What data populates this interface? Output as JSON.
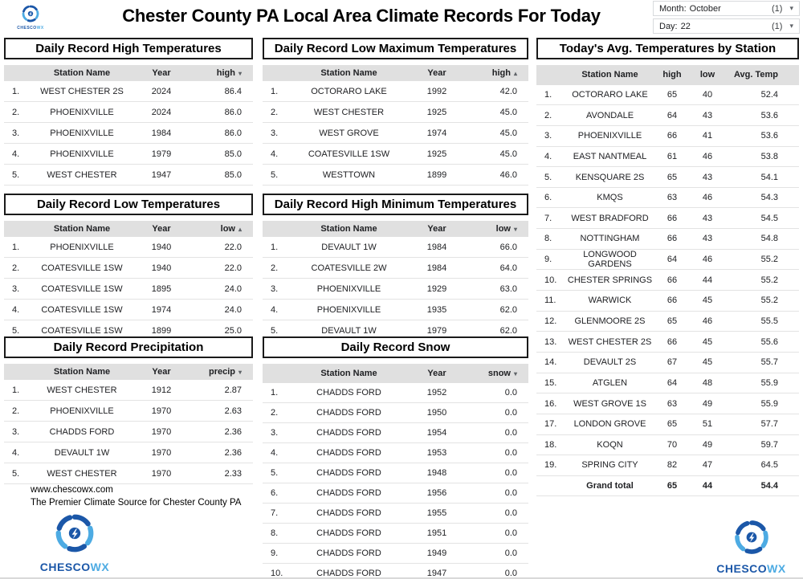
{
  "header": {
    "title": "Chester County PA Local Area Climate Records For Today"
  },
  "brand": {
    "dark": "CHESCO",
    "light": "WX"
  },
  "filters": {
    "month": {
      "label": "Month:",
      "value": "October",
      "count": "(1)"
    },
    "day": {
      "label": "Day:",
      "value": "22",
      "count": "(1)"
    }
  },
  "icons": {
    "dropdown_caret": "▾",
    "sort_asc": "▴",
    "sort_desc": "▾",
    "logo": "hurricane-swirl"
  },
  "colors": {
    "brand_dark": "#1b57a8",
    "brand_light": "#4dabe3",
    "header_bg": "#e0e0e0",
    "row_border": "#e3e3e3",
    "title_border": "#1a1a1a"
  },
  "tables": {
    "record_high": {
      "title": "Daily Record High Temperatures",
      "columns": [
        "Station Name",
        "Year"
      ],
      "sort": {
        "label": "high",
        "dir": "desc"
      },
      "rows": [
        [
          "1.",
          "WEST CHESTER 2S",
          "2024",
          "86.4"
        ],
        [
          "2.",
          "PHOENIXVILLE",
          "2024",
          "86.0"
        ],
        [
          "3.",
          "PHOENIXVILLE",
          "1984",
          "86.0"
        ],
        [
          "4.",
          "PHOENIXVILLE",
          "1979",
          "85.0"
        ],
        [
          "5.",
          "WEST CHESTER",
          "1947",
          "85.0"
        ]
      ]
    },
    "record_low": {
      "title": "Daily Record Low Temperatures",
      "columns": [
        "Station Name",
        "Year"
      ],
      "sort": {
        "label": "low",
        "dir": "asc"
      },
      "rows": [
        [
          "1.",
          "PHOENIXVILLE",
          "1940",
          "22.0"
        ],
        [
          "2.",
          "COATESVILLE 1SW",
          "1940",
          "22.0"
        ],
        [
          "3.",
          "COATESVILLE 1SW",
          "1895",
          "24.0"
        ],
        [
          "4.",
          "COATESVILLE 1SW",
          "1974",
          "24.0"
        ],
        [
          "5.",
          "COATESVILLE 1SW",
          "1899",
          "25.0"
        ]
      ]
    },
    "record_precip": {
      "title": "Daily Record Precipitation",
      "columns": [
        "Station Name",
        "Year"
      ],
      "sort": {
        "label": "precip",
        "dir": "desc"
      },
      "rows": [
        [
          "1.",
          "WEST CHESTER",
          "1912",
          "2.87"
        ],
        [
          "2.",
          "PHOENIXVILLE",
          "1970",
          "2.63"
        ],
        [
          "3.",
          "CHADDS FORD",
          "1970",
          "2.36"
        ],
        [
          "4.",
          "DEVAULT 1W",
          "1970",
          "2.36"
        ],
        [
          "5.",
          "WEST CHESTER",
          "1970",
          "2.33"
        ]
      ]
    },
    "record_low_max": {
      "title": "Daily Record Low Maximum Temperatures",
      "columns": [
        "Station Name",
        "Year"
      ],
      "sort": {
        "label": "high",
        "dir": "asc"
      },
      "rows": [
        [
          "1.",
          "OCTORARO LAKE",
          "1992",
          "42.0"
        ],
        [
          "2.",
          "WEST CHESTER",
          "1925",
          "45.0"
        ],
        [
          "3.",
          "WEST GROVE",
          "1974",
          "45.0"
        ],
        [
          "4.",
          "COATESVILLE 1SW",
          "1925",
          "45.0"
        ],
        [
          "5.",
          "WESTTOWN",
          "1899",
          "46.0"
        ]
      ]
    },
    "record_high_min": {
      "title": "Daily Record High Minimum Temperatures",
      "columns": [
        "Station Name",
        "Year"
      ],
      "sort": {
        "label": "low",
        "dir": "desc"
      },
      "rows": [
        [
          "1.",
          "DEVAULT 1W",
          "1984",
          "66.0"
        ],
        [
          "2.",
          "COATESVILLE 2W",
          "1984",
          "64.0"
        ],
        [
          "3.",
          "PHOENIXVILLE",
          "1929",
          "63.0"
        ],
        [
          "4.",
          "PHOENIXVILLE",
          "1935",
          "62.0"
        ],
        [
          "5.",
          "DEVAULT 1W",
          "1979",
          "62.0"
        ]
      ]
    },
    "record_snow": {
      "title": "Daily Record Snow",
      "columns": [
        "Station Name",
        "Year"
      ],
      "sort": {
        "label": "snow",
        "dir": "desc"
      },
      "rows": [
        [
          "1.",
          "CHADDS FORD",
          "1952",
          "0.0"
        ],
        [
          "2.",
          "CHADDS FORD",
          "1950",
          "0.0"
        ],
        [
          "3.",
          "CHADDS FORD",
          "1954",
          "0.0"
        ],
        [
          "4.",
          "CHADDS FORD",
          "1953",
          "0.0"
        ],
        [
          "5.",
          "CHADDS FORD",
          "1948",
          "0.0"
        ],
        [
          "6.",
          "CHADDS FORD",
          "1956",
          "0.0"
        ],
        [
          "7.",
          "CHADDS FORD",
          "1955",
          "0.0"
        ],
        [
          "8.",
          "CHADDS FORD",
          "1951",
          "0.0"
        ],
        [
          "9.",
          "CHADDS FORD",
          "1949",
          "0.0"
        ],
        [
          "10.",
          "CHADDS FORD",
          "1947",
          "0.0"
        ]
      ]
    },
    "avg": {
      "title": "Today's Avg. Temperatures by Station",
      "columns": [
        "Station Name",
        "high",
        "low",
        "Avg. Temp"
      ],
      "rows": [
        [
          "1.",
          "OCTORARO LAKE",
          "65",
          "40",
          "52.4"
        ],
        [
          "2.",
          "AVONDALE",
          "64",
          "43",
          "53.6"
        ],
        [
          "3.",
          "PHOENIXVILLE",
          "66",
          "41",
          "53.6"
        ],
        [
          "4.",
          "EAST NANTMEAL",
          "61",
          "46",
          "53.8"
        ],
        [
          "5.",
          "KENSQUARE 2S",
          "65",
          "43",
          "54.1"
        ],
        [
          "6.",
          "KMQS",
          "63",
          "46",
          "54.3"
        ],
        [
          "7.",
          "WEST BRADFORD",
          "66",
          "43",
          "54.5"
        ],
        [
          "8.",
          "NOTTINGHAM",
          "66",
          "43",
          "54.8"
        ],
        [
          "9.",
          "LONGWOOD GARDENS",
          "64",
          "46",
          "55.2"
        ],
        [
          "10.",
          "CHESTER SPRINGS",
          "66",
          "44",
          "55.2"
        ],
        [
          "11.",
          "WARWICK",
          "66",
          "45",
          "55.2"
        ],
        [
          "12.",
          "GLENMOORE 2S",
          "65",
          "46",
          "55.5"
        ],
        [
          "13.",
          "WEST CHESTER 2S",
          "66",
          "45",
          "55.6"
        ],
        [
          "14.",
          "DEVAULT 2S",
          "67",
          "45",
          "55.7"
        ],
        [
          "15.",
          "ATGLEN",
          "64",
          "48",
          "55.9"
        ],
        [
          "16.",
          "WEST GROVE 1S",
          "63",
          "49",
          "55.9"
        ],
        [
          "17.",
          "LONDON GROVE",
          "65",
          "51",
          "57.7"
        ],
        [
          "18.",
          "KOQN",
          "70",
          "49",
          "59.7"
        ],
        [
          "19.",
          "SPRING CITY",
          "82",
          "47",
          "64.5"
        ]
      ],
      "total": [
        "Grand total",
        "65",
        "44",
        "54.4"
      ]
    }
  },
  "footer": {
    "url": "www.chescowx.com",
    "tagline": "The Premier Climate Source for Chester County PA"
  }
}
